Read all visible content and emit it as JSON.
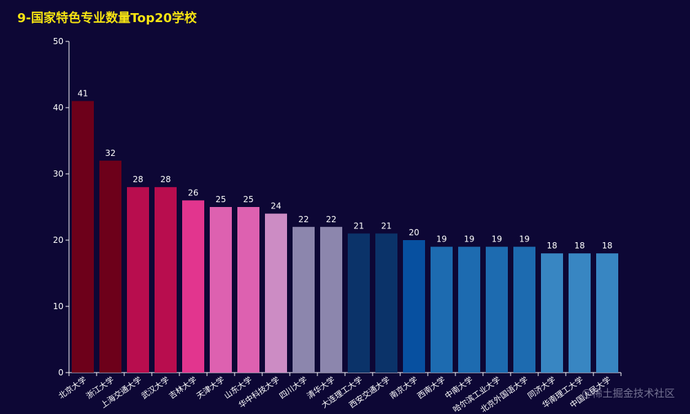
{
  "chart_data": {
    "type": "bar",
    "title": "9-国家特色专业数量Top20学校",
    "xlabel": "",
    "ylabel": "",
    "ylim": [
      0,
      50
    ],
    "yticks": [
      0,
      10,
      20,
      30,
      40,
      50
    ],
    "categories": [
      "北京大学",
      "浙江大学",
      "上海交通大学",
      "武汉大学",
      "吉林大学",
      "天津大学",
      "山东大学",
      "华中科技大学",
      "四川大学",
      "清华大学",
      "大连理工大学",
      "西安交通大学",
      "南京大学",
      "西南大学",
      "中南大学",
      "哈尔滨工业大学",
      "北京外国语大学",
      "同济大学",
      "华南理工大学",
      "中国人民大学"
    ],
    "values": [
      41,
      32,
      28,
      28,
      26,
      25,
      25,
      24,
      22,
      22,
      21,
      21,
      20,
      19,
      19,
      19,
      19,
      18,
      18,
      18
    ],
    "colors": [
      "#6d001a",
      "#6d001a",
      "#b80d4e",
      "#b80d4e",
      "#e2358e",
      "#dd61b0",
      "#dd61b0",
      "#cc8cc4",
      "#8c86ad",
      "#8c86ad",
      "#0b3369",
      "#0b3369",
      "#0750a0",
      "#1d6bb0",
      "#1d6bb0",
      "#1d6bb0",
      "#1d6bb0",
      "#3886c2",
      "#3886c2",
      "#3886c2"
    ]
  },
  "watermark": "@稀土掘金技术社区"
}
